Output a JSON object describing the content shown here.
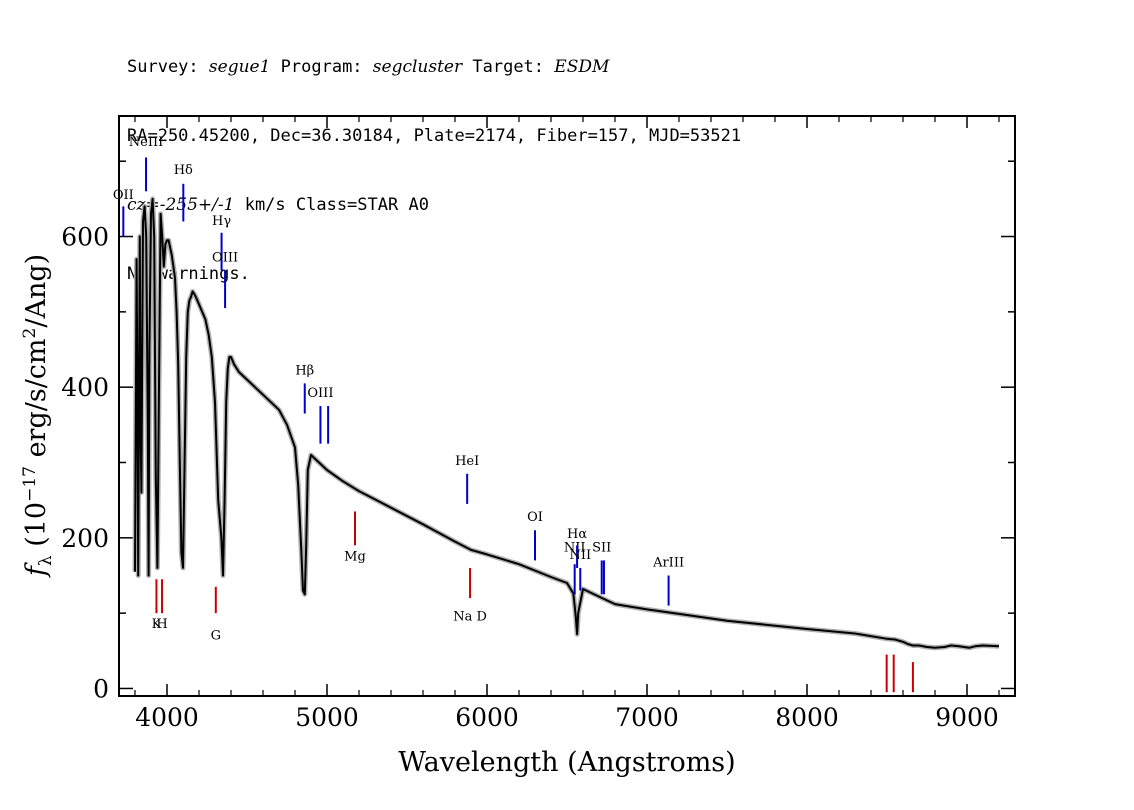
{
  "header": {
    "survey_label": "Survey:",
    "survey": "segue1",
    "program_label": "Program:",
    "program": "segcluster",
    "target_label": "Target:",
    "target": "ESDM",
    "line2": "RA=250.45200, Dec=36.30184, Plate=2174, Fiber=157, MJD=53521",
    "cz_label": "cz=",
    "cz_value": "-255+/-1",
    "cz_rest": " km/s Class=STAR A0",
    "line4": "No warnings."
  },
  "chart_data": {
    "type": "line",
    "xlabel": "Wavelength (Angstroms)",
    "ylabel": "f_λ (10^-17 erg/s/cm^2/Ang)",
    "xlim": [
      3700,
      9300
    ],
    "ylim": [
      -10,
      760
    ],
    "xticks": [
      4000,
      5000,
      6000,
      7000,
      8000,
      9000
    ],
    "yticks": [
      0,
      200,
      400,
      600
    ],
    "color": "#000000",
    "error_color": "#b0b0b0",
    "series": [
      {
        "x": [
          3800,
          3810,
          3815,
          3820,
          3830,
          3835,
          3840,
          3850,
          3860,
          3870,
          3880,
          3885,
          3890,
          3900,
          3910,
          3920,
          3930,
          3940,
          3950,
          3960,
          3970,
          3980,
          3990,
          4000,
          4010,
          4020,
          4030,
          4040,
          4050,
          4060,
          4070,
          4080,
          4090,
          4100,
          4110,
          4120,
          4130,
          4140,
          4150,
          4160,
          4170,
          4180,
          4200,
          4220,
          4240,
          4260,
          4280,
          4300,
          4320,
          4340,
          4350,
          4360,
          4370,
          4380,
          4390,
          4400,
          4420,
          4450,
          4500,
          4600,
          4700,
          4750,
          4800,
          4820,
          4840,
          4850,
          4861,
          4870,
          4880,
          4900,
          4950,
          5000,
          5100,
          5200,
          5400,
          5600,
          5800,
          5900,
          6000,
          6200,
          6400,
          6500,
          6540,
          6555,
          6563,
          6570,
          6600,
          6700,
          6800,
          7000,
          7200,
          7500,
          8000,
          8300,
          8500,
          8550,
          8600,
          8630,
          8662,
          8700,
          8750,
          8800,
          8860,
          8900,
          8950,
          9014,
          9050,
          9100,
          9200
        ],
        "y": [
          155,
          570,
          400,
          150,
          600,
          350,
          260,
          620,
          640,
          600,
          350,
          150,
          450,
          630,
          650,
          600,
          280,
          160,
          400,
          630,
          600,
          560,
          590,
          595,
          595,
          585,
          575,
          560,
          545,
          500,
          430,
          300,
          180,
          160,
          300,
          440,
          500,
          515,
          520,
          527,
          524,
          520,
          510,
          500,
          490,
          470,
          440,
          380,
          250,
          200,
          150,
          250,
          380,
          425,
          440,
          440,
          430,
          420,
          410,
          390,
          370,
          350,
          320,
          270,
          180,
          130,
          125,
          190,
          290,
          310,
          300,
          290,
          275,
          262,
          240,
          218,
          195,
          184,
          178,
          165,
          148,
          140,
          126,
          95,
          72,
          100,
          132,
          122,
          112,
          105,
          99,
          90,
          79,
          73,
          66,
          65,
          62,
          59,
          57,
          57,
          55,
          54,
          55,
          57,
          56,
          54,
          56,
          57,
          56
        ]
      }
    ],
    "emission_lines": [
      {
        "label": "OII",
        "x": 3727,
        "y0": 600,
        "y1": 640,
        "ly": 650
      },
      {
        "label": "NeIII",
        "x": 3869,
        "y0": 660,
        "y1": 705,
        "ly": 720
      },
      {
        "label": "Hδ",
        "x": 4102,
        "y0": 620,
        "y1": 670,
        "ly": 683
      },
      {
        "label": "Hγ",
        "x": 4341,
        "y0": 555,
        "y1": 605,
        "ly": 615
      },
      {
        "label": "OIII",
        "x": 4363,
        "y0": 505,
        "y1": 555,
        "ly": 567
      },
      {
        "label": "Hβ",
        "x": 4861,
        "y0": 365,
        "y1": 405,
        "ly": 417
      },
      {
        "label": "OIII",
        "x": 4959,
        "y0": 325,
        "y1": 375,
        "ly": 387
      },
      {
        "label": "",
        "x": 5007,
        "y0": 325,
        "y1": 375,
        "ly": 0
      },
      {
        "label": "HeI",
        "x": 5876,
        "y0": 245,
        "y1": 285,
        "ly": 297
      },
      {
        "label": "OI",
        "x": 6300,
        "y0": 170,
        "y1": 210,
        "ly": 222
      },
      {
        "label": "NII",
        "x": 6548,
        "y0": 125,
        "y1": 165,
        "ly": 182
      },
      {
        "label": "Hα",
        "x": 6563,
        "y0": 160,
        "y1": 190,
        "ly": 200
      },
      {
        "label": "NII",
        "x": 6583,
        "y0": 130,
        "y1": 160,
        "ly": 172
      },
      {
        "label": "SII",
        "x": 6717,
        "y0": 125,
        "y1": 170,
        "ly": 182
      },
      {
        "label": "",
        "x": 6731,
        "y0": 125,
        "y1": 170,
        "ly": 0
      },
      {
        "label": "ArIII",
        "x": 7135,
        "y0": 110,
        "y1": 150,
        "ly": 162
      }
    ],
    "absorption_lines": [
      {
        "label": "K",
        "x": 3934,
        "y0": 100,
        "y1": 145,
        "ly": 80
      },
      {
        "label": "H",
        "x": 3969,
        "y0": 100,
        "y1": 145,
        "ly": 80
      },
      {
        "label": "G",
        "x": 4305,
        "y0": 100,
        "y1": 135,
        "ly": 65
      },
      {
        "label": "Mg",
        "x": 5175,
        "y0": 190,
        "y1": 235,
        "ly": 170
      },
      {
        "label": "Na D",
        "x": 5894,
        "y0": 120,
        "y1": 160,
        "ly": 90
      },
      {
        "label": "",
        "x": 8498,
        "y0": -5,
        "y1": 45,
        "ly": 0
      },
      {
        "label": "",
        "x": 8542,
        "y0": -5,
        "y1": 45,
        "ly": 0
      },
      {
        "label": "",
        "x": 8662,
        "y0": -5,
        "y1": 35,
        "ly": 0
      }
    ],
    "emission_color": "#0000cc",
    "absorption_color": "#cc0000"
  }
}
